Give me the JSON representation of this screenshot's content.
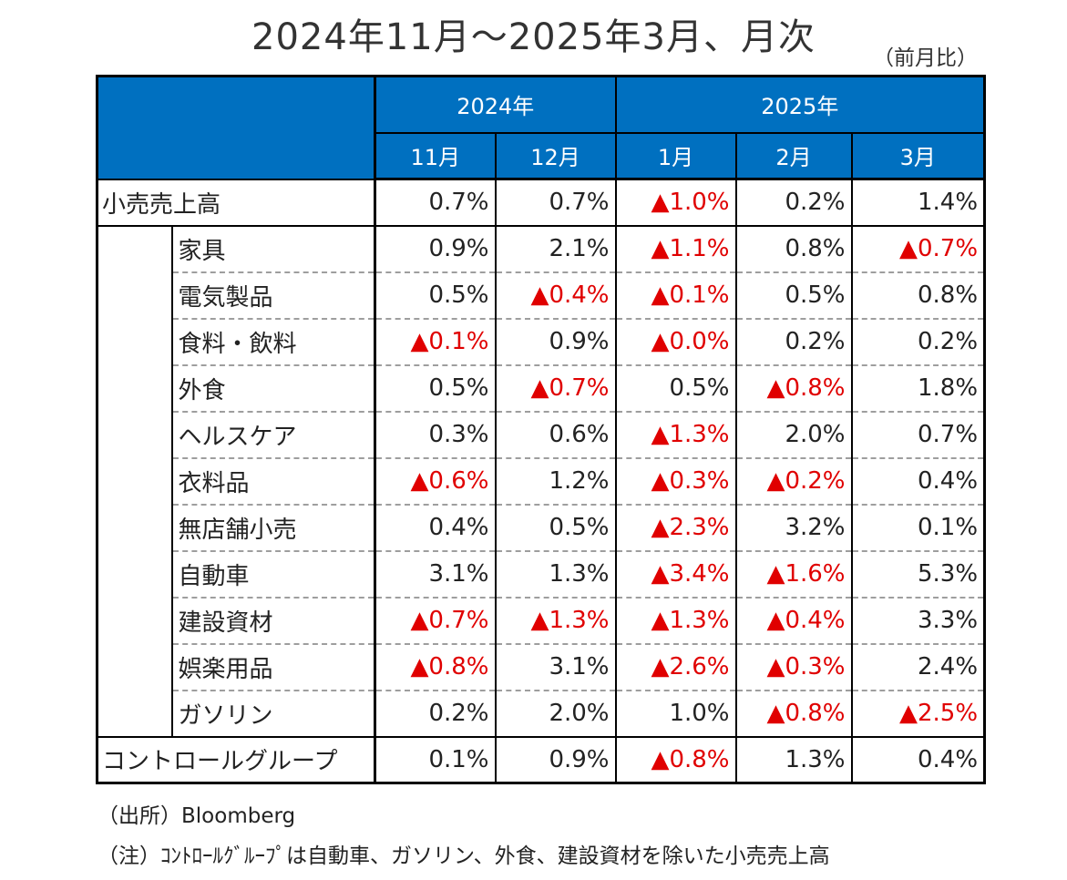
{
  "title": "2024年11月～2025年3月、月次",
  "unit_note": "（前月比）",
  "years": [
    {
      "label": "2024年",
      "span": 2
    },
    {
      "label": "2025年",
      "span": 3
    }
  ],
  "months": [
    "11月",
    "12月",
    "1月",
    "2月",
    "3月"
  ],
  "rows": [
    {
      "name": "小売売上高",
      "level": 0,
      "values": [
        "0.7%",
        "0.7%",
        "▲1.0%",
        "0.2%",
        "1.4%"
      ]
    },
    {
      "name": "家具",
      "level": 1,
      "values": [
        "0.9%",
        "2.1%",
        "▲1.1%",
        "0.8%",
        "▲0.7%"
      ]
    },
    {
      "name": "電気製品",
      "level": 1,
      "values": [
        "0.5%",
        "▲0.4%",
        "▲0.1%",
        "0.5%",
        "0.8%"
      ]
    },
    {
      "name": "食料・飲料",
      "level": 1,
      "values": [
        "▲0.1%",
        "0.9%",
        "▲0.0%",
        "0.2%",
        "0.2%"
      ]
    },
    {
      "name": "外食",
      "level": 1,
      "values": [
        "0.5%",
        "▲0.7%",
        "0.5%",
        "▲0.8%",
        "1.8%"
      ]
    },
    {
      "name": "ヘルスケア",
      "level": 1,
      "values": [
        "0.3%",
        "0.6%",
        "▲1.3%",
        "2.0%",
        "0.7%"
      ]
    },
    {
      "name": "衣料品",
      "level": 1,
      "values": [
        "▲0.6%",
        "1.2%",
        "▲0.3%",
        "▲0.2%",
        "0.4%"
      ]
    },
    {
      "name": "無店舗小売",
      "level": 1,
      "values": [
        "0.4%",
        "0.5%",
        "▲2.3%",
        "3.2%",
        "0.1%"
      ]
    },
    {
      "name": "自動車",
      "level": 1,
      "values": [
        "3.1%",
        "1.3%",
        "▲3.4%",
        "▲1.6%",
        "5.3%"
      ]
    },
    {
      "name": "建設資材",
      "level": 1,
      "values": [
        "▲0.7%",
        "▲1.3%",
        "▲1.3%",
        "▲0.4%",
        "3.3%"
      ]
    },
    {
      "name": "娯楽用品",
      "level": 1,
      "values": [
        "▲0.8%",
        "3.1%",
        "▲2.6%",
        "▲0.3%",
        "2.4%"
      ]
    },
    {
      "name": "ガソリン",
      "level": 1,
      "values": [
        "0.2%",
        "2.0%",
        "1.0%",
        "▲0.8%",
        "▲2.5%"
      ]
    },
    {
      "name": "コントロールグループ",
      "level": 0,
      "values": [
        "0.1%",
        "0.9%",
        "▲0.8%",
        "1.3%",
        "0.4%"
      ]
    }
  ],
  "notes": {
    "source": "（出所）Bloomberg",
    "note": "（注）ｺﾝﾄﾛｰﾙｸﾞﾙｰﾌﾟは自動車、ガソリン、外食、建設資材を除いた小売売上高"
  },
  "colors": {
    "header_bg": "#0070c0",
    "negative": "#e00000"
  }
}
